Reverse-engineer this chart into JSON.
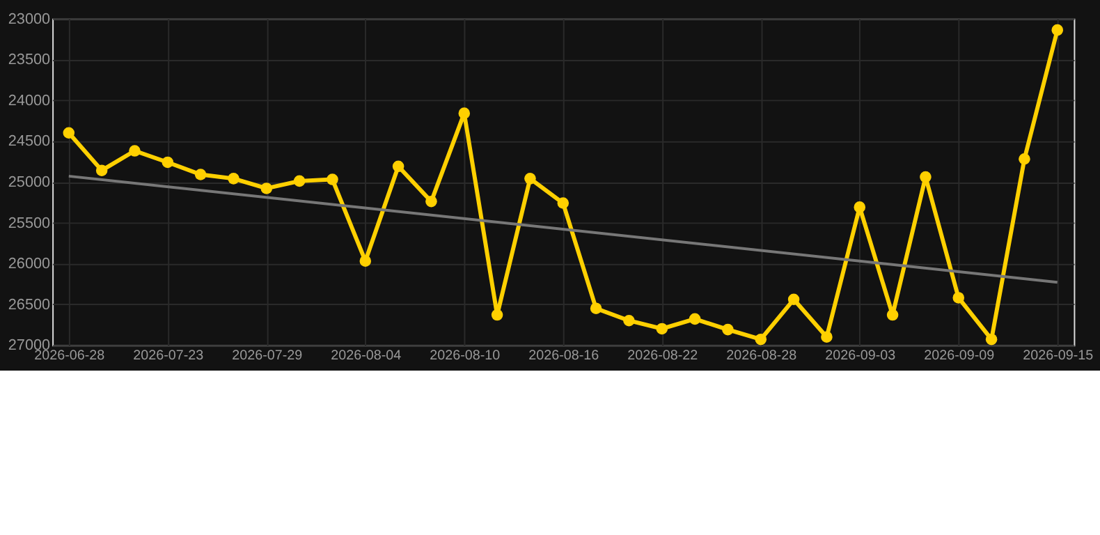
{
  "chart_data": {
    "type": "line",
    "categories": [
      "2026-06-28",
      null,
      null,
      "2026-07-23",
      null,
      null,
      "2026-07-29",
      null,
      null,
      "2026-08-04",
      null,
      null,
      "2026-08-10",
      null,
      null,
      "2026-08-16",
      null,
      null,
      "2026-08-22",
      null,
      null,
      "2026-08-28",
      null,
      null,
      "2026-09-03",
      null,
      null,
      "2026-09-09",
      null,
      null,
      "2026-09-15"
    ],
    "series": [
      {
        "color": "#ffd000",
        "marker": "circle",
        "values": [
          24400,
          24860,
          24620,
          24760,
          24910,
          24960,
          25080,
          24990,
          24970,
          25970,
          24810,
          25240,
          24160,
          26630,
          24960,
          25260,
          26550,
          26700,
          26800,
          26680,
          26810,
          26930,
          26440,
          26900,
          25310,
          26630,
          24940,
          26420,
          26930,
          24720,
          23140
        ]
      },
      {
        "type": "line",
        "color": "#777777",
        "marker": "none",
        "values": [
          24930,
          null,
          null,
          null,
          null,
          null,
          null,
          null,
          null,
          null,
          null,
          null,
          null,
          null,
          null,
          null,
          null,
          null,
          null,
          null,
          null,
          null,
          null,
          null,
          null,
          null,
          null,
          null,
          null,
          null,
          26230
        ]
      }
    ],
    "ylim": [
      27000,
      23000
    ],
    "yticks": [
      23000,
      23500,
      24000,
      24500,
      25000,
      25500,
      26000,
      26500,
      27000
    ],
    "grid": true
  }
}
